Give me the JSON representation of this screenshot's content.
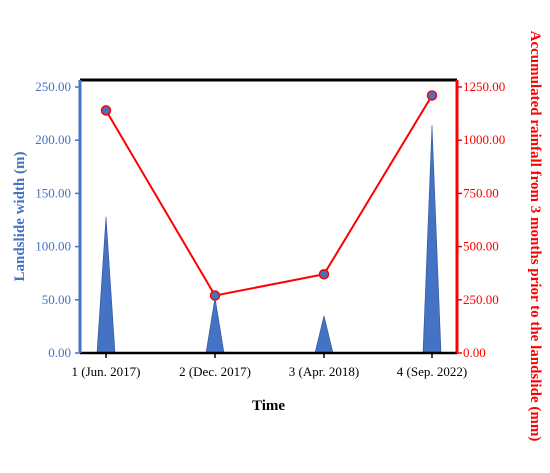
{
  "chart_data": {
    "type": "bar-line-combo",
    "categories": [
      "1 (Jun. 2017)",
      "2 (Dec. 2017)",
      "3 (Apr. 2018)",
      "4 (Sep. 2022)"
    ],
    "xlabel": "Time",
    "series": [
      {
        "name": "Landslide width (m)",
        "type": "triangle-bar",
        "axis": "left",
        "color": "#4472C4",
        "values": [
          128,
          52,
          35,
          214
        ]
      },
      {
        "name": "Accumulated rainfall from 3 months prior to the landslide (mm)",
        "type": "line",
        "axis": "right",
        "color": "#FF0000",
        "marker_color": "#4472C4",
        "values": [
          1140,
          270,
          370,
          1210
        ]
      }
    ],
    "left_axis": {
      "label": "Landslide width (m)",
      "ylim": [
        0,
        250
      ],
      "ticks": [
        "0.00",
        "50.00",
        "100.00",
        "150.00",
        "200.00",
        "250.00"
      ],
      "color": "#4472C4"
    },
    "right_axis": {
      "label": "Accumulated rainfall from 3 months prior to the landslide (mm)",
      "ylim": [
        0,
        1250
      ],
      "ticks": [
        "0.00",
        "250.00",
        "500.00",
        "750.00",
        "1000.00",
        "1250.00"
      ],
      "color": "#FF0000"
    },
    "grid": false,
    "legend": "none"
  }
}
